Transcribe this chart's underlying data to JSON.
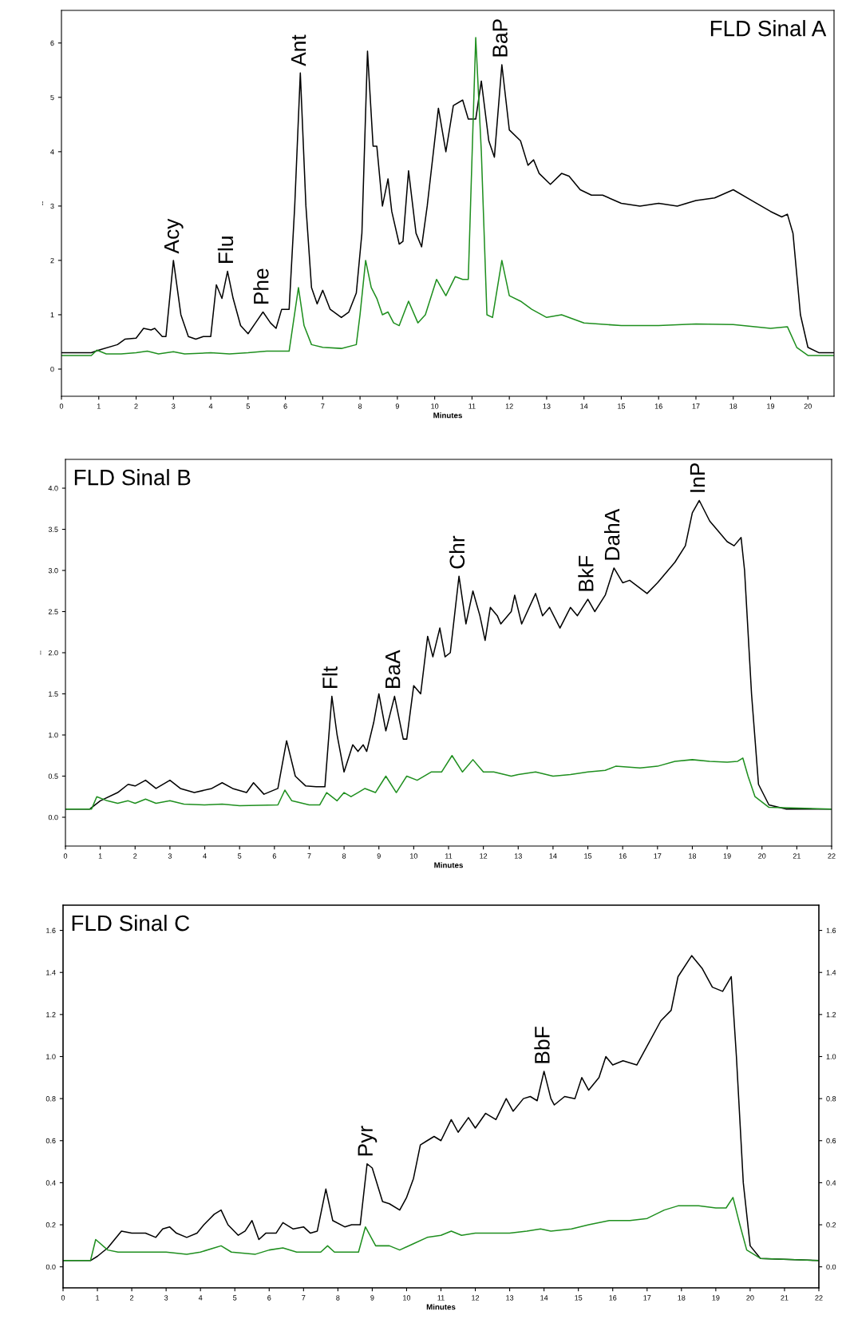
{
  "chart_data": [
    {
      "type": "line",
      "title": "FLD Sinal A",
      "xlabel": "Minutes",
      "ylabel": "--",
      "xlim": [
        0,
        20.7
      ],
      "ylim": [
        -0.5,
        6.6
      ],
      "xticks": [
        0,
        1,
        2,
        3,
        4,
        5,
        6,
        7,
        8,
        9,
        10,
        11,
        12,
        13,
        14,
        15,
        16,
        17,
        18,
        19,
        20
      ],
      "yticks": [
        0,
        1,
        2,
        3,
        4,
        5,
        6
      ],
      "series": [
        {
          "color": "#000000",
          "x": [
            0,
            0.8,
            1.0,
            1.5,
            1.7,
            2.0,
            2.2,
            2.4,
            2.5,
            2.7,
            2.8,
            3.0,
            3.2,
            3.4,
            3.6,
            3.8,
            4.0,
            4.15,
            4.3,
            4.45,
            4.6,
            4.8,
            5.0,
            5.2,
            5.4,
            5.6,
            5.75,
            5.9,
            6.1,
            6.25,
            6.4,
            6.55,
            6.7,
            6.85,
            7.0,
            7.2,
            7.5,
            7.7,
            7.9,
            8.05,
            8.2,
            8.35,
            8.45,
            8.6,
            8.75,
            8.85,
            9.05,
            9.15,
            9.3,
            9.5,
            9.65,
            9.8,
            10.1,
            10.3,
            10.5,
            10.75,
            10.9,
            11.1,
            11.25,
            11.45,
            11.6,
            11.8,
            12.0,
            12.3,
            12.5,
            12.65,
            12.8,
            13.1,
            13.4,
            13.6,
            13.9,
            14.2,
            14.5,
            15.0,
            15.5,
            16.0,
            16.5,
            17.0,
            17.5,
            18.0,
            18.5,
            19.0,
            19.3,
            19.45,
            19.6,
            19.8,
            20.0,
            20.3,
            20.7
          ],
          "values": [
            0.3,
            0.3,
            0.35,
            0.45,
            0.55,
            0.57,
            0.75,
            0.72,
            0.75,
            0.6,
            0.6,
            2.0,
            1.0,
            0.6,
            0.55,
            0.6,
            0.6,
            1.55,
            1.3,
            1.8,
            1.3,
            0.8,
            0.65,
            0.85,
            1.05,
            0.85,
            0.75,
            1.1,
            1.1,
            3.0,
            5.45,
            3.0,
            1.5,
            1.2,
            1.45,
            1.1,
            0.95,
            1.05,
            1.4,
            2.5,
            5.85,
            4.1,
            4.1,
            3.0,
            3.5,
            2.9,
            2.3,
            2.35,
            3.65,
            2.5,
            2.25,
            3.0,
            4.8,
            4.0,
            4.85,
            4.95,
            4.6,
            4.6,
            5.3,
            4.2,
            3.9,
            5.6,
            4.4,
            4.2,
            3.75,
            3.85,
            3.6,
            3.4,
            3.6,
            3.55,
            3.3,
            3.2,
            3.2,
            3.05,
            3.0,
            3.05,
            3.0,
            3.1,
            3.15,
            3.3,
            3.1,
            2.9,
            2.8,
            2.85,
            2.5,
            1.0,
            0.4,
            0.3,
            0.3
          ]
        },
        {
          "color": "#1f8f1f",
          "x": [
            0,
            0.8,
            0.95,
            1.2,
            1.6,
            2.0,
            2.3,
            2.6,
            3.0,
            3.3,
            4.0,
            4.5,
            5.0,
            5.5,
            6.1,
            6.35,
            6.5,
            6.7,
            7.0,
            7.5,
            7.9,
            8.0,
            8.15,
            8.3,
            8.45,
            8.6,
            8.75,
            8.9,
            9.05,
            9.3,
            9.55,
            9.75,
            10.05,
            10.3,
            10.55,
            10.75,
            10.9,
            11.05,
            11.1,
            11.25,
            11.4,
            11.55,
            11.8,
            12.0,
            12.3,
            12.6,
            13.0,
            13.4,
            14.0,
            15.0,
            16.0,
            17.0,
            18.0,
            19.0,
            19.45,
            19.7,
            20.0,
            20.7
          ],
          "values": [
            0.25,
            0.25,
            0.35,
            0.28,
            0.28,
            0.3,
            0.33,
            0.28,
            0.32,
            0.28,
            0.3,
            0.28,
            0.3,
            0.33,
            0.33,
            1.5,
            0.8,
            0.45,
            0.4,
            0.38,
            0.45,
            1.0,
            2.0,
            1.5,
            1.3,
            1.0,
            1.05,
            0.85,
            0.8,
            1.25,
            0.85,
            1.0,
            1.65,
            1.35,
            1.7,
            1.65,
            1.65,
            5.0,
            6.1,
            4.0,
            1.0,
            0.95,
            2.0,
            1.35,
            1.25,
            1.1,
            0.95,
            1.0,
            0.85,
            0.8,
            0.8,
            0.83,
            0.82,
            0.75,
            0.78,
            0.4,
            0.25,
            0.25
          ]
        }
      ],
      "annotations": [
        {
          "text": "Acy",
          "x": 3.0,
          "y": 2.0
        },
        {
          "text": "Flu",
          "x": 4.45,
          "y": 1.8
        },
        {
          "text": "Phe",
          "x": 5.4,
          "y": 1.05
        },
        {
          "text": "Ant",
          "x": 6.4,
          "y": 5.45
        },
        {
          "text": "BaP",
          "x": 11.8,
          "y": 5.6
        }
      ]
    },
    {
      "type": "line",
      "title": "FLD Sinal B",
      "xlabel": "Minutes",
      "ylabel": "--",
      "xlim": [
        0,
        22
      ],
      "ylim": [
        -0.35,
        4.35
      ],
      "xticks": [
        0,
        1,
        2,
        3,
        4,
        5,
        6,
        7,
        8,
        9,
        10,
        11,
        12,
        13,
        14,
        15,
        16,
        17,
        18,
        19,
        20,
        21,
        22
      ],
      "yticks": [
        {
          "value": 0,
          "label": "0.0"
        },
        0.5,
        {
          "value": 1,
          "label": "1.0"
        },
        1.5,
        {
          "value": 2,
          "label": "2.0"
        },
        2.5,
        {
          "value": 3,
          "label": "3.0"
        },
        3.5,
        {
          "value": 4,
          "label": "4.0"
        }
      ],
      "series": [
        {
          "color": "#000000",
          "x": [
            0,
            0.7,
            1.0,
            1.5,
            1.8,
            2.0,
            2.3,
            2.6,
            3.0,
            3.3,
            3.7,
            4.2,
            4.5,
            4.8,
            5.2,
            5.4,
            5.7,
            6.1,
            6.35,
            6.6,
            6.9,
            7.2,
            7.45,
            7.65,
            7.8,
            8.0,
            8.25,
            8.4,
            8.55,
            8.65,
            8.85,
            9.0,
            9.2,
            9.45,
            9.7,
            9.8,
            10.0,
            10.2,
            10.4,
            10.55,
            10.75,
            10.9,
            11.05,
            11.3,
            11.5,
            11.7,
            11.9,
            12.05,
            12.2,
            12.4,
            12.5,
            12.8,
            12.9,
            13.1,
            13.5,
            13.7,
            13.9,
            14.2,
            14.5,
            14.7,
            15.0,
            15.2,
            15.5,
            15.75,
            16.0,
            16.2,
            16.7,
            17.0,
            17.5,
            17.8,
            18.0,
            18.2,
            18.5,
            18.7,
            19.0,
            19.2,
            19.4,
            19.5,
            19.7,
            19.9,
            20.2,
            20.7,
            22
          ],
          "values": [
            0.1,
            0.1,
            0.2,
            0.3,
            0.4,
            0.38,
            0.45,
            0.35,
            0.45,
            0.35,
            0.3,
            0.35,
            0.42,
            0.35,
            0.3,
            0.42,
            0.28,
            0.35,
            0.93,
            0.5,
            0.38,
            0.37,
            0.37,
            1.47,
            1.0,
            0.55,
            0.88,
            0.8,
            0.88,
            0.8,
            1.15,
            1.5,
            1.05,
            1.47,
            0.95,
            0.95,
            1.6,
            1.5,
            2.2,
            1.95,
            2.3,
            1.95,
            2.0,
            2.93,
            2.35,
            2.75,
            2.45,
            2.15,
            2.55,
            2.45,
            2.35,
            2.5,
            2.7,
            2.35,
            2.72,
            2.45,
            2.55,
            2.3,
            2.55,
            2.45,
            2.65,
            2.5,
            2.7,
            3.03,
            2.85,
            2.88,
            2.72,
            2.85,
            3.1,
            3.3,
            3.7,
            3.85,
            3.6,
            3.5,
            3.35,
            3.3,
            3.4,
            3.0,
            1.5,
            0.4,
            0.15,
            0.1,
            0.1
          ]
        },
        {
          "color": "#1f8f1f",
          "x": [
            0,
            0.75,
            0.9,
            1.2,
            1.5,
            1.8,
            2.0,
            2.3,
            2.6,
            3.0,
            3.4,
            4.0,
            4.5,
            5.0,
            6.1,
            6.3,
            6.5,
            7.0,
            7.3,
            7.5,
            7.8,
            8.0,
            8.2,
            8.4,
            8.6,
            8.9,
            9.2,
            9.5,
            9.8,
            10.1,
            10.5,
            10.8,
            11.1,
            11.4,
            11.7,
            12.0,
            12.3,
            12.8,
            13.0,
            13.5,
            14.0,
            14.5,
            15.0,
            15.5,
            15.8,
            16.5,
            17.0,
            17.5,
            18.0,
            18.5,
            19.0,
            19.3,
            19.45,
            19.6,
            19.8,
            20.2,
            22
          ],
          "values": [
            0.1,
            0.1,
            0.25,
            0.2,
            0.17,
            0.2,
            0.17,
            0.22,
            0.17,
            0.2,
            0.16,
            0.15,
            0.16,
            0.14,
            0.15,
            0.33,
            0.2,
            0.15,
            0.15,
            0.3,
            0.2,
            0.3,
            0.25,
            0.3,
            0.35,
            0.3,
            0.5,
            0.3,
            0.5,
            0.45,
            0.55,
            0.55,
            0.75,
            0.55,
            0.7,
            0.55,
            0.55,
            0.5,
            0.52,
            0.55,
            0.5,
            0.52,
            0.55,
            0.57,
            0.62,
            0.6,
            0.62,
            0.68,
            0.7,
            0.68,
            0.67,
            0.68,
            0.72,
            0.5,
            0.25,
            0.12,
            0.1
          ]
        }
      ],
      "annotations": [
        {
          "text": "Flt",
          "x": 7.65,
          "y": 1.47
        },
        {
          "text": "BaA",
          "x": 9.45,
          "y": 1.47
        },
        {
          "text": "Chr",
          "x": 11.3,
          "y": 2.93
        },
        {
          "text": "BkF",
          "x": 15.0,
          "y": 2.65
        },
        {
          "text": "DahA",
          "x": 15.75,
          "y": 3.03
        },
        {
          "text": "InP",
          "x": 18.2,
          "y": 3.85
        }
      ]
    },
    {
      "type": "line",
      "title": "FLD Sinal C",
      "xlabel": "Minutes",
      "xlim": [
        0,
        22
      ],
      "ylim": [
        -0.1,
        1.72
      ],
      "y2lim": [
        -0.1,
        1.72
      ],
      "xticks": [
        0,
        1,
        2,
        3,
        4,
        5,
        6,
        7,
        8,
        9,
        10,
        11,
        12,
        13,
        14,
        15,
        16,
        17,
        18,
        19,
        20,
        21,
        22
      ],
      "yticks": [
        {
          "value": 0,
          "label": "0.0"
        },
        0.2,
        0.4,
        0.6,
        0.8,
        {
          "value": 1,
          "label": "1.0"
        },
        1.2,
        1.4,
        1.6
      ],
      "y2ticks": [
        {
          "value": 0,
          "label": "0.0"
        },
        0.2,
        0.4,
        0.6,
        0.8,
        {
          "value": 1,
          "label": "1.0"
        },
        1.2,
        1.4,
        1.6
      ],
      "series": [
        {
          "color": "#000000",
          "x": [
            0,
            0.8,
            1.0,
            1.3,
            1.7,
            2.0,
            2.4,
            2.7,
            2.9,
            3.1,
            3.3,
            3.6,
            3.9,
            4.1,
            4.4,
            4.6,
            4.8,
            5.1,
            5.3,
            5.5,
            5.7,
            5.9,
            6.2,
            6.4,
            6.7,
            7.0,
            7.2,
            7.4,
            7.65,
            7.85,
            8.2,
            8.4,
            8.65,
            8.85,
            9.0,
            9.3,
            9.5,
            9.8,
            10.0,
            10.2,
            10.4,
            10.6,
            10.8,
            11.0,
            11.3,
            11.5,
            11.8,
            12.0,
            12.3,
            12.6,
            12.9,
            13.1,
            13.4,
            13.6,
            13.8,
            14.0,
            14.2,
            14.3,
            14.6,
            14.9,
            15.1,
            15.3,
            15.6,
            15.8,
            16.0,
            16.3,
            16.7,
            17.0,
            17.4,
            17.7,
            17.9,
            18.3,
            18.6,
            18.9,
            19.2,
            19.45,
            19.6,
            19.8,
            20.0,
            20.3,
            22
          ],
          "values": [
            0.03,
            0.03,
            0.05,
            0.09,
            0.17,
            0.16,
            0.16,
            0.14,
            0.18,
            0.19,
            0.16,
            0.14,
            0.16,
            0.2,
            0.25,
            0.27,
            0.2,
            0.15,
            0.17,
            0.22,
            0.13,
            0.16,
            0.16,
            0.21,
            0.18,
            0.19,
            0.16,
            0.17,
            0.37,
            0.22,
            0.19,
            0.2,
            0.2,
            0.49,
            0.47,
            0.31,
            0.3,
            0.27,
            0.33,
            0.42,
            0.58,
            0.6,
            0.62,
            0.6,
            0.7,
            0.64,
            0.71,
            0.66,
            0.73,
            0.7,
            0.8,
            0.74,
            0.8,
            0.81,
            0.79,
            0.93,
            0.8,
            0.77,
            0.81,
            0.8,
            0.9,
            0.84,
            0.9,
            1.0,
            0.96,
            0.98,
            0.96,
            1.05,
            1.17,
            1.22,
            1.38,
            1.48,
            1.42,
            1.33,
            1.31,
            1.38,
            1.0,
            0.4,
            0.1,
            0.04,
            0.03
          ]
        },
        {
          "color": "#1f8f1f",
          "x": [
            0,
            0.8,
            0.95,
            1.3,
            1.6,
            2.5,
            3.0,
            3.6,
            4.0,
            4.4,
            4.6,
            4.9,
            5.6,
            6.0,
            6.4,
            6.8,
            7.5,
            7.7,
            7.9,
            8.6,
            8.8,
            9.1,
            9.5,
            9.8,
            10.2,
            10.6,
            11.0,
            11.3,
            11.6,
            12.0,
            12.5,
            13.0,
            13.5,
            13.9,
            14.2,
            14.8,
            15.3,
            15.9,
            16.5,
            17.0,
            17.5,
            17.9,
            18.5,
            19.0,
            19.3,
            19.5,
            19.7,
            19.9,
            20.3,
            22
          ],
          "values": [
            0.03,
            0.03,
            0.13,
            0.08,
            0.07,
            0.07,
            0.07,
            0.06,
            0.07,
            0.09,
            0.1,
            0.07,
            0.06,
            0.08,
            0.09,
            0.07,
            0.07,
            0.1,
            0.07,
            0.07,
            0.19,
            0.1,
            0.1,
            0.08,
            0.11,
            0.14,
            0.15,
            0.17,
            0.15,
            0.16,
            0.16,
            0.16,
            0.17,
            0.18,
            0.17,
            0.18,
            0.2,
            0.22,
            0.22,
            0.23,
            0.27,
            0.29,
            0.29,
            0.28,
            0.28,
            0.33,
            0.2,
            0.08,
            0.04,
            0.03
          ]
        }
      ],
      "annotations": [
        {
          "text": "Pyr",
          "x": 8.85,
          "y": 0.49
        },
        {
          "text": "BbF",
          "x": 14.0,
          "y": 0.93
        }
      ]
    }
  ]
}
